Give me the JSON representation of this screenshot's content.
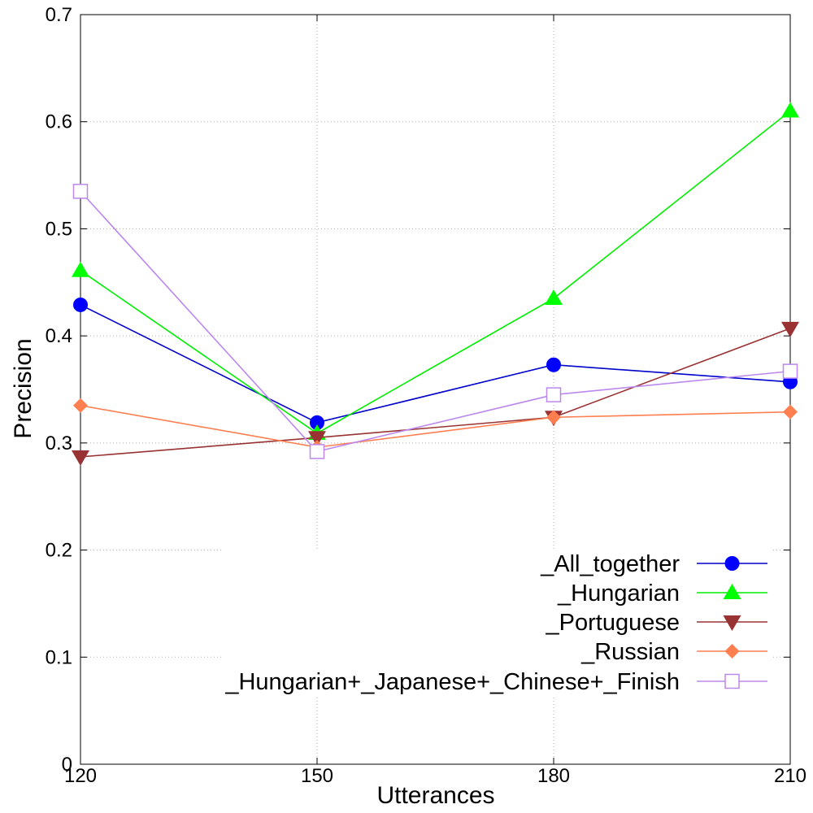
{
  "chart_data": {
    "type": "line",
    "xlabel": "Utterances",
    "ylabel": "Precision",
    "xlim": [
      120,
      210
    ],
    "ylim": [
      0,
      0.7
    ],
    "x": [
      120,
      150,
      180,
      210
    ],
    "xticks": [
      "120",
      "150",
      "180",
      "210"
    ],
    "yticks": [
      "0",
      "0.1",
      "0.2",
      "0.3",
      "0.4",
      "0.5",
      "0.6",
      "0.7"
    ],
    "grid": true,
    "legend_position": "bottom-right",
    "series": [
      {
        "name": "_All_together",
        "values": [
          0.429,
          0.319,
          0.373,
          0.357
        ],
        "color": "#0000cc",
        "marker": "filled-circle",
        "marker_color": "#0000ff"
      },
      {
        "name": "_Hungarian",
        "values": [
          0.461,
          0.309,
          0.435,
          0.61
        ],
        "color": "#00ee00",
        "marker": "filled-triangle-up",
        "marker_color": "#00ff00"
      },
      {
        "name": "_Portuguese",
        "values": [
          0.287,
          0.305,
          0.324,
          0.407
        ],
        "color": "#993333",
        "marker": "filled-triangle-down",
        "marker_color": "#993333"
      },
      {
        "name": "_Russian",
        "values": [
          0.335,
          0.296,
          0.324,
          0.329
        ],
        "color": "#ff7f50",
        "marker": "filled-diamond",
        "marker_color": "#ff7f50"
      },
      {
        "name": "_Hungarian+_Japanese+_Chinese+_Finish",
        "values": [
          0.535,
          0.292,
          0.345,
          0.367
        ],
        "color": "#bb88ee",
        "marker": "open-square",
        "marker_color": "#bb88ee"
      }
    ]
  }
}
